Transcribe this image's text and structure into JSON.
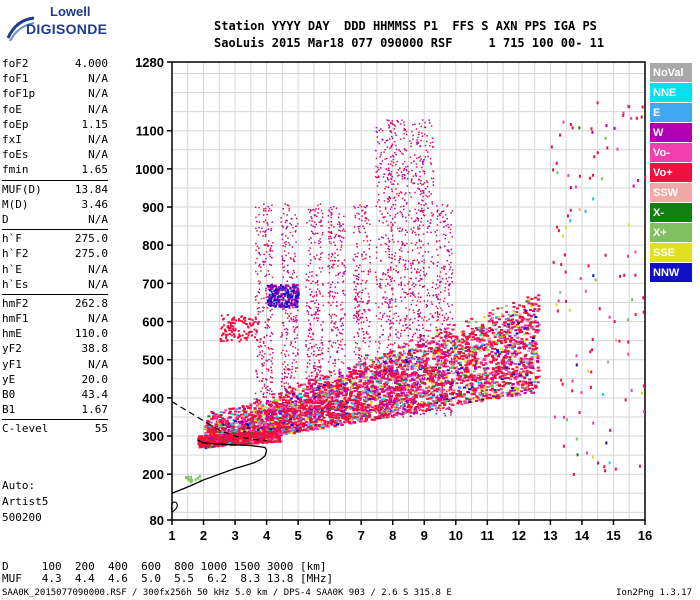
{
  "logo": {
    "line1": "Lowell",
    "line2": "DIGISONDE"
  },
  "header": {
    "row1": "Station YYYY DAY  DDD HHMMSS P1  FFS S AXN PPS IGA PS",
    "row2": "SaoLuis 2015 Mar18 077 090000 RSF     1 715 100 00- 11"
  },
  "params": [
    {
      "k": "foF2",
      "v": "4.000"
    },
    {
      "k": "foF1",
      "v": "N/A"
    },
    {
      "k": "foF1p",
      "v": "N/A"
    },
    {
      "k": "foE",
      "v": "N/A"
    },
    {
      "k": "foEp",
      "v": "1.15"
    },
    {
      "k": "fxI",
      "v": "N/A"
    },
    {
      "k": "foEs",
      "v": "N/A"
    },
    {
      "k": "fmin",
      "v": "1.65"
    },
    {
      "k": "MUF(D)",
      "v": "13.84"
    },
    {
      "k": "M(D)",
      "v": "3.46"
    },
    {
      "k": "D",
      "v": "N/A"
    },
    {
      "k": "h`F",
      "v": "275.0"
    },
    {
      "k": "h`F2",
      "v": "275.0"
    },
    {
      "k": "h`E",
      "v": "N/A"
    },
    {
      "k": "h`Es",
      "v": "N/A"
    },
    {
      "k": "hmF2",
      "v": "262.8"
    },
    {
      "k": "hmF1",
      "v": "N/A"
    },
    {
      "k": "hmE",
      "v": "110.0"
    },
    {
      "k": "yF2",
      "v": "38.8"
    },
    {
      "k": "yF1",
      "v": "N/A"
    },
    {
      "k": "yE",
      "v": "20.0"
    },
    {
      "k": "B0",
      "v": "43.4"
    },
    {
      "k": "B1",
      "v": "1.67"
    },
    {
      "k": "C-level",
      "v": "55"
    }
  ],
  "auto": {
    "l1": "Auto:",
    "l2": "Artist5",
    "l3": "500200"
  },
  "muf_table": {
    "d_row": "D     100  200  400  600  800 1000 1500 3000 [km]",
    "muf_row": "MUF   4.3  4.4  4.6  5.0  5.5  6.2  8.3 13.8 [MHz]"
  },
  "footer": {
    "left": "SAA0K_2015077090000.RSF / 300fx256h 50 kHz 5.0 km / DPS-4 SAA0K 903 / 2.6 S 315.8 E",
    "right": "Ion2Png 1.3.17"
  },
  "legend": [
    {
      "label": "NoVal",
      "color": "#a8a8a8"
    },
    {
      "label": "NNE",
      "color": "#00e0f0"
    },
    {
      "label": "E",
      "color": "#40a8f0"
    },
    {
      "label": "W",
      "color": "#b000b0"
    },
    {
      "label": "Vo-",
      "color": "#f040b0"
    },
    {
      "label": "Vo+",
      "color": "#f01040"
    },
    {
      "label": "SSW",
      "color": "#f0a8a8"
    },
    {
      "label": "X-",
      "color": "#108010"
    },
    {
      "label": "X+",
      "color": "#80c060"
    },
    {
      "label": "SSE",
      "color": "#e0e020"
    },
    {
      "label": "NNW",
      "color": "#1010c8"
    }
  ],
  "chart_data": {
    "type": "scatter",
    "title": "",
    "xlabel": "",
    "ylabel": "",
    "xlim": [
      1,
      16
    ],
    "ylim": [
      80,
      1280
    ],
    "x_ticks": [
      1,
      2,
      3,
      4,
      5,
      6,
      7,
      8,
      9,
      10,
      11,
      12,
      13,
      14,
      15,
      16
    ],
    "y_ticks": [
      80,
      200,
      300,
      400,
      500,
      600,
      700,
      800,
      900,
      1000,
      1100,
      1280
    ],
    "grid": true,
    "profile_curve": {
      "x": [
        1.0,
        1.3,
        1.6,
        2.0,
        2.5,
        3.0,
        3.3,
        3.6,
        3.8,
        3.95,
        4.0,
        3.95,
        3.8,
        3.5,
        3.0,
        2.5,
        2.0,
        1.8
      ],
      "y": [
        150,
        160,
        170,
        185,
        200,
        215,
        222,
        230,
        238,
        248,
        262,
        270,
        272,
        275,
        277,
        279,
        282,
        290
      ]
    },
    "trace_dashed": {
      "x": [
        1.0,
        1.5,
        2.0,
        2.5,
        3.0,
        3.5,
        4.0
      ],
      "y": [
        390,
        365,
        340,
        315,
        300,
        292,
        288
      ]
    }
  }
}
